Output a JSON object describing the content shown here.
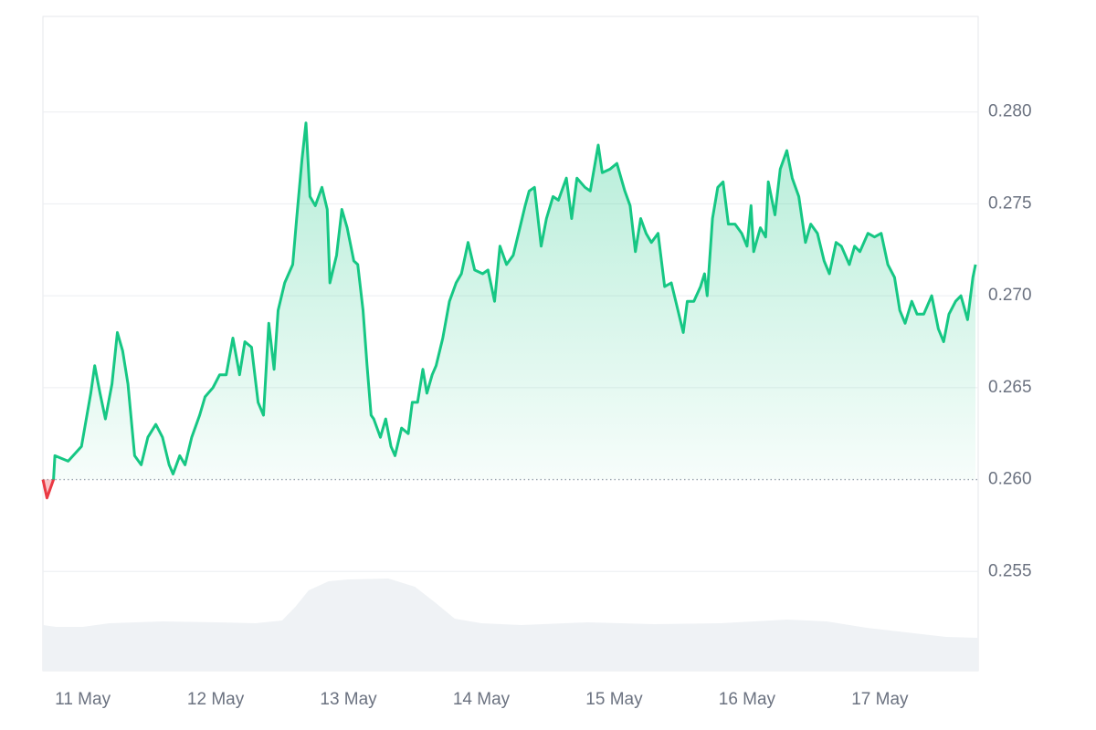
{
  "chart_data": {
    "type": "line",
    "x": [
      10.7,
      10.73,
      10.78,
      10.79,
      10.89,
      10.99,
      11.06,
      11.09,
      11.13,
      11.17,
      11.22,
      11.26,
      11.3,
      11.34,
      11.39,
      11.44,
      11.49,
      11.55,
      11.6,
      11.65,
      11.68,
      11.73,
      11.77,
      11.82,
      11.88,
      11.92,
      11.98,
      12.03,
      12.08,
      12.13,
      12.18,
      12.22,
      12.27,
      12.32,
      12.36,
      12.4,
      12.44,
      12.47,
      12.52,
      12.58,
      12.61,
      12.65,
      12.68,
      12.71,
      12.75,
      12.8,
      12.84,
      12.86,
      12.91,
      12.95,
      12.99,
      13.04,
      13.07,
      13.11,
      13.14,
      13.17,
      13.19,
      13.24,
      13.28,
      13.32,
      13.35,
      13.4,
      13.45,
      13.48,
      13.52,
      13.56,
      13.59,
      13.63,
      13.66,
      13.71,
      13.76,
      13.81,
      13.85,
      13.9,
      13.95,
      14.01,
      14.05,
      14.1,
      14.14,
      14.19,
      14.24,
      14.29,
      14.33,
      14.36,
      14.4,
      14.45,
      14.49,
      14.54,
      14.58,
      14.64,
      14.68,
      14.72,
      14.78,
      14.82,
      14.88,
      14.91,
      14.97,
      15.02,
      15.08,
      15.12,
      15.16,
      15.2,
      15.24,
      15.28,
      15.33,
      15.38,
      15.43,
      15.48,
      15.52,
      15.55,
      15.6,
      15.65,
      15.68,
      15.7,
      15.74,
      15.78,
      15.82,
      15.86,
      15.91,
      15.96,
      16.0,
      16.03,
      16.05,
      16.1,
      16.14,
      16.16,
      16.21,
      16.25,
      16.3,
      16.34,
      16.39,
      16.44,
      16.48,
      16.53,
      16.58,
      16.62,
      16.67,
      16.71,
      16.77,
      16.81,
      16.85,
      16.91,
      16.96,
      17.01,
      17.06,
      17.11,
      17.15,
      17.19,
      17.24,
      17.28,
      17.33,
      17.39,
      17.44,
      17.48,
      17.52,
      17.57,
      17.61,
      17.66,
      17.7,
      17.72
    ],
    "values": [
      0.26,
      0.259,
      0.26,
      0.2613,
      0.261,
      0.2618,
      0.2647,
      0.2662,
      0.2647,
      0.2633,
      0.2652,
      0.268,
      0.267,
      0.2652,
      0.2613,
      0.2608,
      0.2623,
      0.263,
      0.2623,
      0.2608,
      0.2603,
      0.2613,
      0.2608,
      0.2623,
      0.2635,
      0.2645,
      0.265,
      0.2657,
      0.2657,
      0.2677,
      0.2657,
      0.2675,
      0.2672,
      0.2642,
      0.2635,
      0.2685,
      0.266,
      0.2692,
      0.2707,
      0.2717,
      0.2742,
      0.2774,
      0.2794,
      0.2754,
      0.2749,
      0.2759,
      0.2747,
      0.2707,
      0.2722,
      0.2747,
      0.2737,
      0.2719,
      0.2717,
      0.2692,
      0.2662,
      0.2635,
      0.2633,
      0.2623,
      0.2633,
      0.2618,
      0.2613,
      0.2628,
      0.2625,
      0.2642,
      0.2642,
      0.266,
      0.2647,
      0.2657,
      0.2662,
      0.2677,
      0.2697,
      0.2707,
      0.2712,
      0.2729,
      0.2714,
      0.2712,
      0.2714,
      0.2697,
      0.2727,
      0.2717,
      0.2722,
      0.2737,
      0.2749,
      0.2757,
      0.2759,
      0.2727,
      0.2742,
      0.2754,
      0.2752,
      0.2764,
      0.2742,
      0.2764,
      0.2759,
      0.2757,
      0.2782,
      0.2767,
      0.2769,
      0.2772,
      0.2757,
      0.2749,
      0.2724,
      0.2742,
      0.2734,
      0.2729,
      0.2734,
      0.2705,
      0.2707,
      0.2692,
      0.268,
      0.2697,
      0.2697,
      0.2705,
      0.2712,
      0.27,
      0.2742,
      0.2759,
      0.2762,
      0.2739,
      0.2739,
      0.2734,
      0.2727,
      0.2749,
      0.2724,
      0.2737,
      0.2732,
      0.2762,
      0.2744,
      0.2769,
      0.2779,
      0.2764,
      0.2754,
      0.2729,
      0.2739,
      0.2734,
      0.2719,
      0.2712,
      0.2729,
      0.2727,
      0.2717,
      0.2727,
      0.2724,
      0.2734,
      0.2732,
      0.2734,
      0.2717,
      0.271,
      0.2692,
      0.2685,
      0.2697,
      0.269,
      0.269,
      0.27,
      0.2682,
      0.2675,
      0.269,
      0.2697,
      0.27,
      0.2687,
      0.271,
      0.2717
    ],
    "baseline": 0.26,
    "color_up": "#16c784",
    "color_down": "#ea3943",
    "xlim": [
      10.7,
      17.74
    ],
    "xticks": [
      {
        "value": 11,
        "label": "11 May"
      },
      {
        "value": 12,
        "label": "12 May"
      },
      {
        "value": 13,
        "label": "13 May"
      },
      {
        "value": 14,
        "label": "14 May"
      },
      {
        "value": 15,
        "label": "15 May"
      },
      {
        "value": 16,
        "label": "16 May"
      },
      {
        "value": 17,
        "label": "17 May"
      }
    ],
    "ylim": [
      0.2496,
      0.2852
    ],
    "yticks": [
      0.255,
      {
        "value": 0.26,
        "label": "0.260"
      },
      0.265,
      {
        "value": 0.27,
        "label": "0.270"
      },
      0.275,
      {
        "value": 0.28,
        "label": "0.280"
      }
    ],
    "grid": true,
    "volume": {
      "color": "#eff2f5",
      "x": [
        10.7,
        10.8,
        11.0,
        11.2,
        11.6,
        12.0,
        12.3,
        12.5,
        12.6,
        12.7,
        12.85,
        13.0,
        13.3,
        13.5,
        13.65,
        13.8,
        14.0,
        14.3,
        14.8,
        15.3,
        15.8,
        16.3,
        16.6,
        16.9,
        17.2,
        17.5,
        17.74
      ],
      "values": [
        50,
        48,
        48,
        52,
        54,
        53,
        52,
        55,
        70,
        88,
        98,
        100,
        101,
        92,
        75,
        57,
        52,
        50,
        53,
        51,
        52,
        56,
        54,
        47,
        42,
        37,
        36
      ]
    }
  }
}
